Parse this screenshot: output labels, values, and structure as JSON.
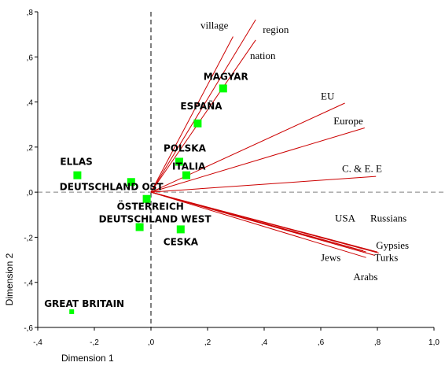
{
  "chart_data": {
    "type": "scatter",
    "xlabel": "Dimension 1",
    "ylabel": "Dimension 2",
    "xlim": [
      -0.4,
      1.0
    ],
    "ylim": [
      -0.6,
      0.8
    ],
    "x_ticks": [
      {
        "v": -0.4,
        "label": "-,4"
      },
      {
        "v": -0.2,
        "label": "-,2"
      },
      {
        "v": 0.0,
        "label": ",0"
      },
      {
        "v": 0.2,
        "label": ",2"
      },
      {
        "v": 0.4,
        "label": ",4"
      },
      {
        "v": 0.6,
        "label": ",6"
      },
      {
        "v": 0.8,
        "label": ",8"
      },
      {
        "v": 1.0,
        "label": "1,0"
      }
    ],
    "y_ticks": [
      {
        "v": 0.8,
        "label": ",8"
      },
      {
        "v": 0.6,
        "label": ",6"
      },
      {
        "v": 0.4,
        "label": ",4"
      },
      {
        "v": 0.2,
        "label": ",2"
      },
      {
        "v": 0.0,
        "label": ",0"
      },
      {
        "v": -0.2,
        "label": "-,2"
      },
      {
        "v": -0.4,
        "label": "-,4"
      },
      {
        "v": -0.6,
        "label": "-,6"
      }
    ],
    "reference_lines": {
      "x": 0.0,
      "y": 0.0,
      "style": "dashed"
    },
    "points": [
      {
        "label": "MAGYAR",
        "x": 0.255,
        "y": 0.46,
        "label_dx": -25,
        "label_dy": -11
      },
      {
        "label": "ESPAÑA",
        "x": 0.165,
        "y": 0.305,
        "label_dx": -22,
        "label_dy": -18
      },
      {
        "label": "ELLAS",
        "x": -0.26,
        "y": 0.075,
        "label_dx": -22,
        "label_dy": -13
      },
      {
        "label": "POLSKA",
        "x": 0.1,
        "y": 0.135,
        "label_dx": -20,
        "label_dy": -13
      },
      {
        "label": "ITALIA",
        "x": 0.125,
        "y": 0.075,
        "label_dx": -18,
        "label_dy": -7
      },
      {
        "label": "DEUTSCHLAND OST",
        "x": -0.07,
        "y": 0.045,
        "label_dx": -91,
        "label_dy": 10
      },
      {
        "label": "ÖSTERREICH",
        "x": -0.015,
        "y": -0.03,
        "label_dx": -38,
        "label_dy": 14
      },
      {
        "label": "DEUTSCHLAND WEST",
        "x": -0.04,
        "y": -0.155,
        "label_dx": -52,
        "label_dy": -6
      },
      {
        "label": "CESKA",
        "x": 0.105,
        "y": -0.165,
        "label_dx": -22,
        "label_dy": 20
      },
      {
        "label": "GREAT BRITAIN",
        "x": -0.28,
        "y": -0.53,
        "label_dx": -35,
        "label_dy": -6
      }
    ],
    "vectors": [
      {
        "label": "village",
        "x": 0.29,
        "y": 0.69,
        "label_x": 0.175,
        "label_y": 0.725
      },
      {
        "label": "region",
        "x": 0.37,
        "y": 0.765,
        "label_x": 0.395,
        "label_y": 0.705
      },
      {
        "label": "nation",
        "x": 0.37,
        "y": 0.675,
        "label_x": 0.35,
        "label_y": 0.59
      },
      {
        "label": "EU",
        "x": 0.685,
        "y": 0.395,
        "label_x": 0.6,
        "label_y": 0.41
      },
      {
        "label": "Europe",
        "x": 0.755,
        "y": 0.285,
        "label_x": 0.645,
        "label_y": 0.3
      },
      {
        "label": "C. & E. E",
        "x": 0.795,
        "y": 0.07,
        "label_x": 0.675,
        "label_y": 0.09
      },
      {
        "label": "USA",
        "x": 0.75,
        "y": -0.26,
        "label_x": 0.65,
        "label_y": -0.13
      },
      {
        "label": "Russians",
        "x": 0.8,
        "y": -0.265,
        "label_x": 0.775,
        "label_y": -0.13
      },
      {
        "label": "Gypsies",
        "x": 0.805,
        "y": -0.27,
        "label_x": 0.795,
        "label_y": -0.25
      },
      {
        "label": "Turks",
        "x": 0.79,
        "y": -0.28,
        "label_x": 0.79,
        "label_y": -0.305
      },
      {
        "label": "Jews",
        "x": 0.76,
        "y": -0.265,
        "label_x": 0.6,
        "label_y": -0.305
      },
      {
        "label": "Arabs",
        "x": 0.76,
        "y": -0.29,
        "label_x": 0.715,
        "label_y": -0.39
      }
    ],
    "colors": {
      "point": "#00ff00",
      "vector": "#cc0000",
      "ref_line": "#808080",
      "axis": "#000000"
    },
    "grid": false
  }
}
